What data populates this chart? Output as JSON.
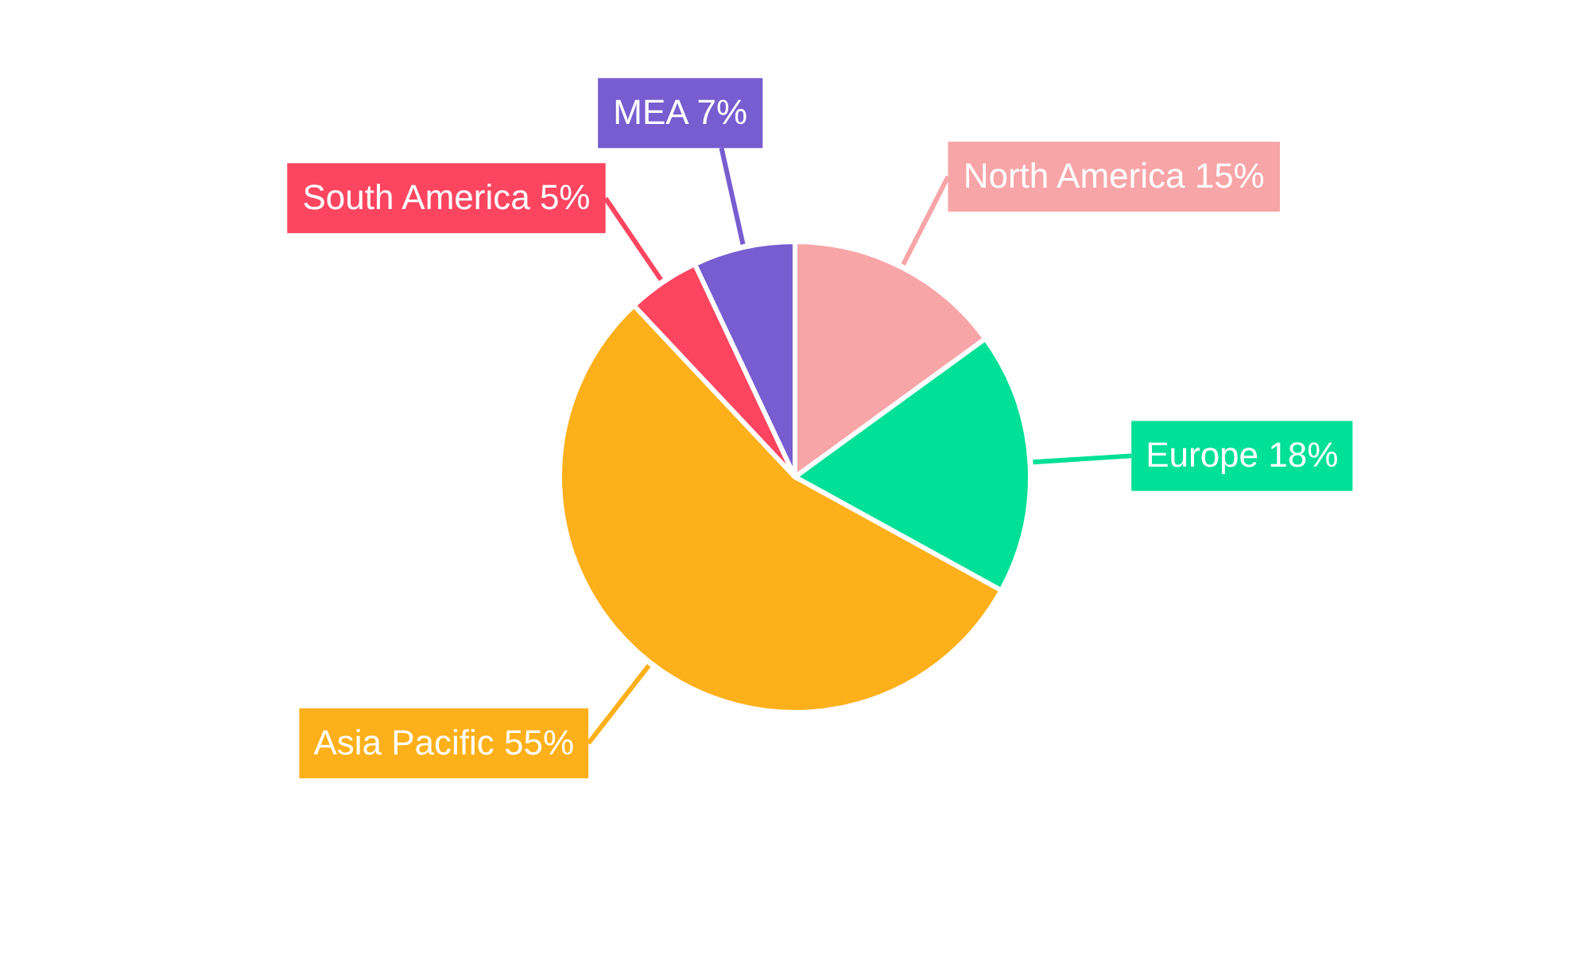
{
  "chart_data": {
    "type": "pie",
    "categories": [
      "North America",
      "Europe",
      "Asia Pacific",
      "South America",
      "MEA"
    ],
    "values": [
      15,
      18,
      55,
      5,
      7
    ],
    "colors": [
      "#f8a5a8",
      "#00e096",
      "#fdb01a",
      "#fe4560",
      "#775dd0"
    ],
    "value_labels": [
      "15%",
      "18%",
      "55%",
      "5%",
      "7%"
    ]
  }
}
